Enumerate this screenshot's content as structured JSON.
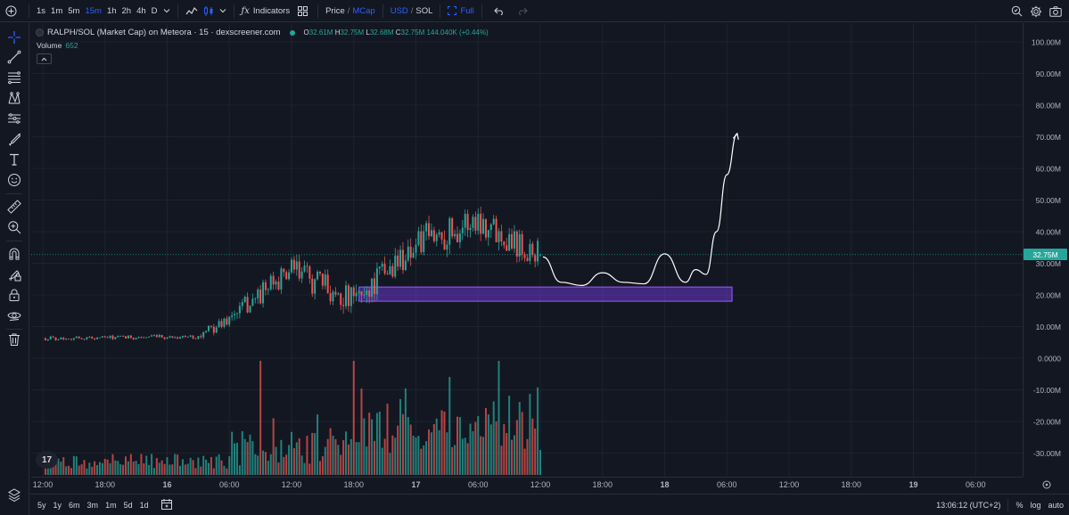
{
  "colors": {
    "up": "#26a69a",
    "down": "#ef5350",
    "accent": "#2962ff",
    "zone_fill": "#7e3ff2",
    "zone_stroke": "#9c5cff",
    "bg": "#131722",
    "grid": "#1e222d"
  },
  "toolbar": {
    "intervals": [
      "1s",
      "1m",
      "5m",
      "15m",
      "1h",
      "2h",
      "4h",
      "D"
    ],
    "active_interval": "15m",
    "indicators_label": "Indicators",
    "price_label": "Price",
    "slash": "/",
    "mcap_label": "MCap",
    "usd_label": "USD",
    "sol_label": "SOL",
    "full_label": "Full"
  },
  "legend": {
    "title": "RALPH/SOL (Market Cap) on Meteora · 15 · dexscreener.com",
    "o_key": "O",
    "o_val": "32.61M",
    "h_key": "H",
    "h_val": "32.75M",
    "l_key": "L",
    "l_val": "32.68M",
    "c_key": "C",
    "c_val": "32.75M",
    "change": "144.040K (+0.44%)",
    "volume_label": "Volume",
    "volume_value": "652"
  },
  "price_axis": {
    "ticks": [
      "100.00M",
      "90.00M",
      "80.00M",
      "70.00M",
      "60.00M",
      "50.00M",
      "40.00M",
      "30.00M",
      "20.00M",
      "10.00M",
      "0.0000",
      "-10.00M",
      "-20.00M",
      "-30.00M"
    ],
    "current_price": "32.75M"
  },
  "time_axis": {
    "ticks": [
      "12:00",
      "18:00",
      "16",
      "06:00",
      "12:00",
      "18:00",
      "17",
      "06:00",
      "12:00",
      "18:00",
      "18",
      "06:00",
      "12:00",
      "18:00",
      "19",
      "06:00"
    ]
  },
  "bottom": {
    "ranges": [
      "5y",
      "1y",
      "6m",
      "3m",
      "1m",
      "5d",
      "1d"
    ],
    "time": "13:06:12 (UTC+2)",
    "percent": "%",
    "log": "log",
    "auto": "auto"
  },
  "tv_logo": "17",
  "left_tools": [
    "crosshair-icon",
    "trendline-icon",
    "fib-icon",
    "pattern-icon",
    "forecast-icon",
    "brush-icon",
    "text-icon",
    "emoji-icon",
    "ruler-icon",
    "zoom-icon",
    "magnet-icon",
    "lock-drawings-icon",
    "lock-icon",
    "eye-icon",
    "trash-icon"
  ],
  "chart_data": {
    "type": "candlestick",
    "title": "RALPH/SOL (Market Cap) on Meteora · 15 · dexscreener.com",
    "ylim": [
      -35,
      105
    ],
    "y_unit": "M",
    "grid": true,
    "segments": [
      {
        "from": "15 12:00",
        "to": "16 03:00",
        "level_start": 6.3,
        "level_end": 6.8,
        "volatility": 0.6
      },
      {
        "from": "16 03:00",
        "to": "16 06:00",
        "level_start": 6.8,
        "level_end": 12.5,
        "volatility": 1.5
      },
      {
        "from": "16 06:00",
        "to": "16 12:00",
        "level_start": 12.5,
        "level_end": 28.0,
        "volatility": 3.0
      },
      {
        "from": "16 12:00",
        "to": "16 18:00",
        "level_start": 28.0,
        "level_end": 18.0,
        "volatility": 4.0
      },
      {
        "from": "16 18:00",
        "to": "17 00:00",
        "level_start": 18.0,
        "level_end": 36.0,
        "volatility": 4.5
      },
      {
        "from": "17 00:00",
        "to": "17 06:00",
        "level_start": 36.0,
        "level_end": 44.0,
        "volatility": 5.0
      },
      {
        "from": "17 06:00",
        "to": "17 12:00",
        "level_start": 44.0,
        "level_end": 32.75,
        "volatility": 4.5
      }
    ],
    "last": {
      "open": 32.61,
      "high": 32.75,
      "low": 32.68,
      "close": 32.75
    },
    "zone": {
      "from": "16 18:00",
      "to": "18 06:30",
      "low": 18.0,
      "high": 22.5
    },
    "forecast_path": [
      [
        "17 12:15",
        32.0
      ],
      [
        "17 14:00",
        24.0
      ],
      [
        "17 16:00",
        23.0
      ],
      [
        "17 18:00",
        27.0
      ],
      [
        "17 20:00",
        24.0
      ],
      [
        "17 22:00",
        23.5
      ],
      [
        "18 00:00",
        33.0
      ],
      [
        "18 02:00",
        24.0
      ],
      [
        "18 03:00",
        28.0
      ],
      [
        "18 04:00",
        26.5
      ],
      [
        "18 05:00",
        40.0
      ],
      [
        "18 06:00",
        58.0
      ],
      [
        "18 07:00",
        71.0
      ]
    ],
    "volume_peaks_M": [
      {
        "time": "16 09:00",
        "value": 38.0
      },
      {
        "time": "16 18:00",
        "value": 38.0
      },
      {
        "time": "17 08:00",
        "value": 38.0
      },
      {
        "time": "17 11:00",
        "value": 27.0
      }
    ]
  }
}
